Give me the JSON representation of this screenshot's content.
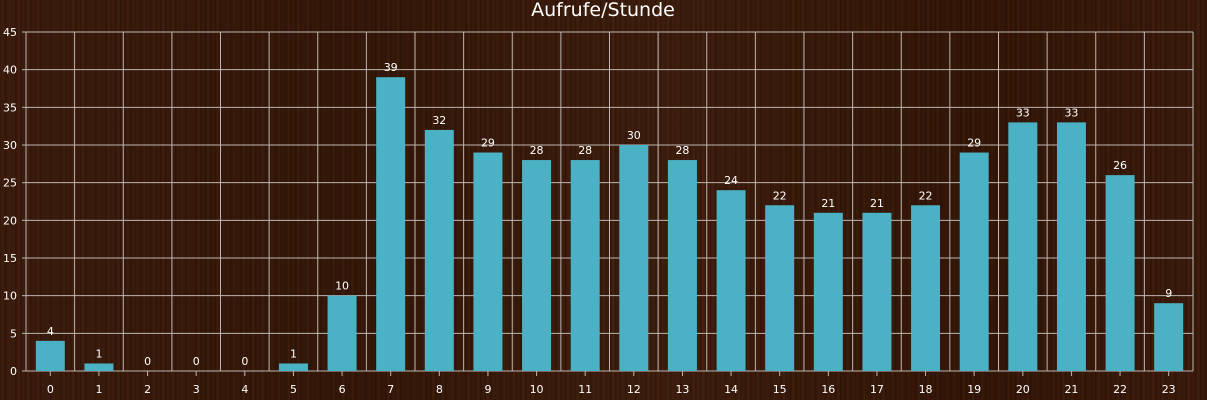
{
  "chart_data": {
    "type": "bar",
    "title": "Aufrufe/Stunde",
    "xlabel": "",
    "ylabel": "",
    "categories": [
      "0",
      "1",
      "2",
      "3",
      "4",
      "5",
      "6",
      "7",
      "8",
      "9",
      "10",
      "11",
      "12",
      "13",
      "14",
      "15",
      "16",
      "17",
      "18",
      "19",
      "20",
      "21",
      "22",
      "23"
    ],
    "values": [
      4,
      1,
      0,
      0,
      0,
      1,
      10,
      39,
      32,
      29,
      28,
      28,
      30,
      28,
      24,
      22,
      21,
      21,
      22,
      29,
      33,
      33,
      26,
      9
    ],
    "ylim": [
      0,
      45
    ],
    "yticks": [
      "0",
      "5",
      "10",
      "15",
      "20",
      "25",
      "30",
      "35",
      "40",
      "45"
    ],
    "grid": true,
    "bar_color": "#4bb2c5",
    "background_color": "#3a1a0c"
  }
}
